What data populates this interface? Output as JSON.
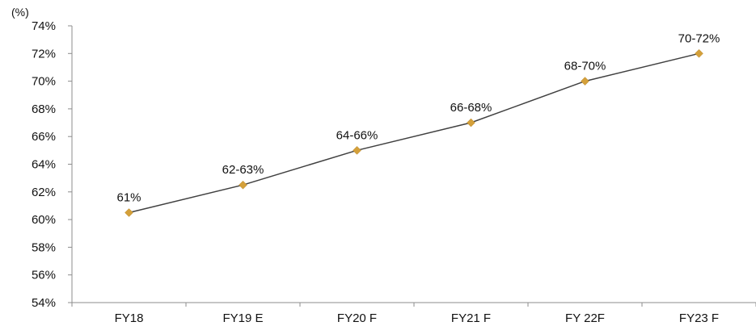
{
  "chart_data": {
    "type": "line",
    "title": "",
    "unit_label": "(%)",
    "xlabel": "",
    "ylabel": "",
    "categories": [
      "FY18",
      "FY19 E",
      "FY20 F",
      "FY21 F",
      "FY 22F",
      "FY23 F"
    ],
    "series": [
      {
        "values": [
          60.5,
          62.5,
          65,
          67,
          70,
          72
        ],
        "labels": [
          "61%",
          "62-63%",
          "64-66%",
          "66-68%",
          "68-70%",
          "70-72%"
        ],
        "line_color": "#404040",
        "marker_color": "#D4A03A"
      }
    ],
    "ylim": [
      54,
      74
    ],
    "yticks": [
      "54%",
      "56%",
      "58%",
      "60%",
      "62%",
      "64%",
      "66%",
      "68%",
      "70%",
      "72%",
      "74%"
    ],
    "grid": false,
    "legend": "none"
  }
}
